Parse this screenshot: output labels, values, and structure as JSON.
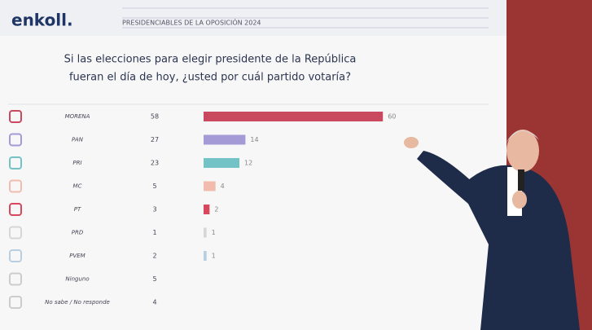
{
  "chart_data": {
    "type": "bar",
    "brand": "enkoll.",
    "header": "PRESIDENCIABLES DE LA OPOSICIÓN 2024",
    "title": "Si las elecciones para elegir presidente de la República",
    "subtitle": "fueran el día de hoy, ¿usted por cuál partido votaría?",
    "categories": [
      "MORENA",
      "PAN",
      "PRI",
      "MC",
      "PT",
      "PRD",
      "PVEM",
      "Ninguno",
      "No sabe / No responde"
    ],
    "column_values": [
      58,
      27,
      23,
      5,
      3,
      1,
      2,
      5,
      4
    ],
    "values": [
      60,
      14,
      12,
      4,
      2,
      1,
      1,
      null,
      null
    ],
    "colors": [
      "#c94a5e",
      "#a39ad6",
      "#72c2c6",
      "#f1bcae",
      "#d8475c",
      "#d6d6d6",
      "#b9cfe0",
      "#cccccc",
      "#cccccc"
    ]
  }
}
